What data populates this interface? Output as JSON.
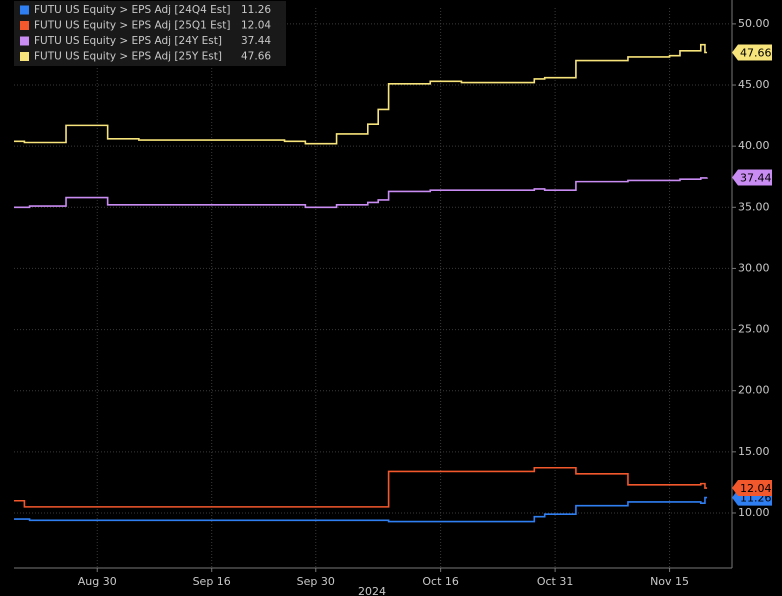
{
  "chart_data": {
    "type": "step-line",
    "x_axis_label": "2024",
    "xlim": [
      0,
      69
    ],
    "xticks": [
      {
        "value": 8,
        "label": "Aug 30"
      },
      {
        "value": 19,
        "label": "Sep 16"
      },
      {
        "value": 29,
        "label": "Sep 30"
      },
      {
        "value": 41,
        "label": "Oct 16"
      },
      {
        "value": 52,
        "label": "Oct 31"
      },
      {
        "value": 63,
        "label": "Nov 15"
      }
    ],
    "ylim": [
      5.5,
      51.3
    ],
    "yticks": [
      {
        "value": 10,
        "label": "10.00"
      },
      {
        "value": 15,
        "label": "15.00"
      },
      {
        "value": 20,
        "label": "20.00"
      },
      {
        "value": 25,
        "label": "25.00"
      },
      {
        "value": 30,
        "label": "30.00"
      },
      {
        "value": 35,
        "label": "35.00"
      },
      {
        "value": 40,
        "label": "40.00"
      },
      {
        "value": 45,
        "label": "45.00"
      },
      {
        "value": 50,
        "label": "50.00"
      }
    ],
    "grid": true,
    "legend": "top-left",
    "series": [
      {
        "name": "FUTU US Equity > EPS Adj [24Q4 Est]",
        "color": "#2f7ff2",
        "x": [
          0,
          1.5,
          36,
          50,
          51,
          54,
          59,
          66,
          66.4,
          66.6
        ],
        "values": [
          9.5,
          9.4,
          9.3,
          9.7,
          9.9,
          10.6,
          10.9,
          10.8,
          11.26,
          11.26
        ]
      },
      {
        "name": "FUTU US Equity > EPS Adj [25Q1 Est]",
        "color": "#f2582c",
        "x": [
          0,
          1,
          36,
          50,
          54,
          59,
          66,
          66.4,
          66.6
        ],
        "values": [
          11.0,
          10.5,
          13.4,
          13.7,
          13.2,
          12.3,
          12.4,
          12.04,
          12.04
        ]
      },
      {
        "name": "FUTU US Equity > EPS Adj [24Y Est]",
        "color": "#c98cf2",
        "x": [
          0,
          1.5,
          5,
          9,
          28,
          31,
          34,
          35,
          36,
          40,
          50,
          51,
          54,
          59,
          64,
          66,
          66.6
        ],
        "values": [
          35.0,
          35.1,
          35.8,
          35.2,
          35.0,
          35.2,
          35.4,
          35.6,
          36.3,
          36.4,
          36.5,
          36.4,
          37.1,
          37.2,
          37.3,
          37.4,
          37.44
        ]
      },
      {
        "name": "FUTU US Equity > EPS Adj [25Y Est]",
        "color": "#f7e47a",
        "x": [
          0,
          1,
          5,
          9,
          12,
          26,
          28,
          31,
          34,
          35,
          36,
          40,
          43,
          50,
          51,
          54,
          59,
          63,
          64,
          66,
          66.4,
          66.6
        ],
        "values": [
          40.4,
          40.3,
          41.7,
          40.6,
          40.5,
          40.4,
          40.2,
          41.0,
          41.8,
          43.0,
          45.1,
          45.3,
          45.2,
          45.5,
          45.6,
          47.0,
          47.3,
          47.4,
          47.8,
          48.3,
          47.66,
          47.66
        ]
      }
    ]
  }
}
